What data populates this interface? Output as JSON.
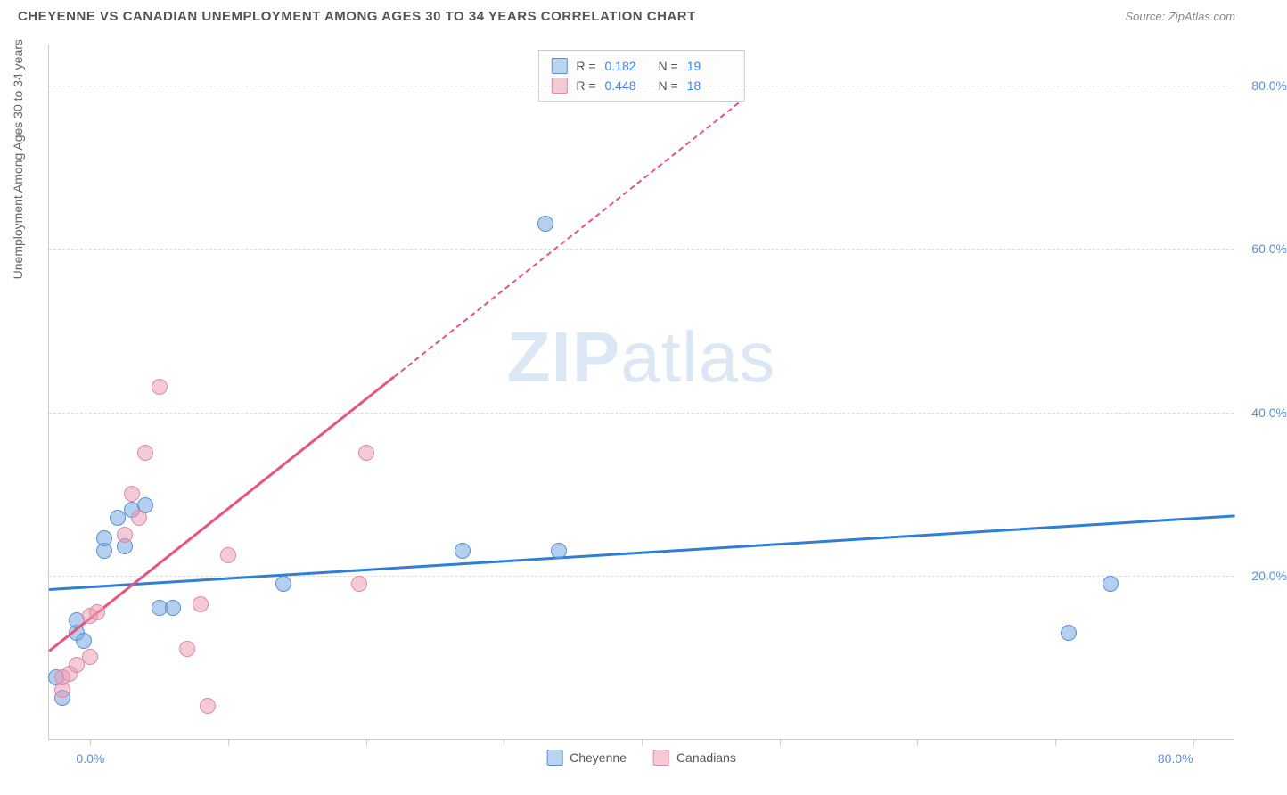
{
  "header": {
    "title": "CHEYENNE VS CANADIAN UNEMPLOYMENT AMONG AGES 30 TO 34 YEARS CORRELATION CHART",
    "source": "Source: ZipAtlas.com"
  },
  "watermark": {
    "bold": "ZIP",
    "light": "atlas"
  },
  "chart": {
    "type": "scatter",
    "y_axis_label": "Unemployment Among Ages 30 to 34 years",
    "background_color": "#ffffff",
    "grid_color": "#dddddd",
    "axis_color": "#cccccc",
    "tick_label_color": "#5b8fd6",
    "xlim": [
      -3,
      83
    ],
    "ylim": [
      0,
      85
    ],
    "x_min_label": "0.0%",
    "x_max_label": "80.0%",
    "y_ticks": [
      {
        "v": 20,
        "label": "20.0%"
      },
      {
        "v": 40,
        "label": "40.0%"
      },
      {
        "v": 60,
        "label": "60.0%"
      },
      {
        "v": 80,
        "label": "80.0%"
      }
    ],
    "x_tick_positions": [
      0,
      10,
      20,
      30,
      40,
      50,
      60,
      70,
      80
    ],
    "legend_top": {
      "rows": [
        {
          "swatch_fill": "#b9d4f0",
          "swatch_border": "#5b8fd6",
          "r_label": "R =",
          "r_val": "0.182",
          "n_label": "N =",
          "n_val": "19"
        },
        {
          "swatch_fill": "#f7c9d4",
          "swatch_border": "#e08aa0",
          "r_label": "R =",
          "r_val": "0.448",
          "n_label": "N =",
          "n_val": "18"
        }
      ]
    },
    "legend_bottom": {
      "items": [
        {
          "swatch_fill": "#b9d4f0",
          "swatch_border": "#5b8fd6",
          "label": "Cheyenne"
        },
        {
          "swatch_fill": "#f7c9d4",
          "swatch_border": "#e08aa0",
          "label": "Canadians"
        }
      ]
    },
    "series": [
      {
        "name": "Cheyenne",
        "fill": "rgba(120,170,225,0.55)",
        "stroke": "#5b8fd6",
        "trend_color": "#2f7ed8",
        "trend": {
          "x1": -3,
          "y1": 18.5,
          "x2": 83,
          "y2": 27.5,
          "dashed_from": null
        },
        "points": [
          {
            "x": -2.5,
            "y": 7.5
          },
          {
            "x": -2,
            "y": 5
          },
          {
            "x": -1,
            "y": 13
          },
          {
            "x": -1,
            "y": 14.5
          },
          {
            "x": -0.5,
            "y": 12
          },
          {
            "x": 1,
            "y": 23
          },
          {
            "x": 1,
            "y": 24.5
          },
          {
            "x": 2,
            "y": 27
          },
          {
            "x": 2.5,
            "y": 23.5
          },
          {
            "x": 3,
            "y": 28
          },
          {
            "x": 4,
            "y": 28.5
          },
          {
            "x": 5,
            "y": 16
          },
          {
            "x": 6,
            "y": 16
          },
          {
            "x": 14,
            "y": 19
          },
          {
            "x": 27,
            "y": 23
          },
          {
            "x": 34,
            "y": 23
          },
          {
            "x": 33,
            "y": 63
          },
          {
            "x": 71,
            "y": 13
          },
          {
            "x": 74,
            "y": 19
          }
        ]
      },
      {
        "name": "Canadians",
        "fill": "rgba(235,150,175,0.5)",
        "stroke": "#e08aa0",
        "trend_color": "#e75480",
        "trend": {
          "x1": -3,
          "y1": 11,
          "x2": 47,
          "y2": 78,
          "dashed_from": 22
        },
        "points": [
          {
            "x": -2,
            "y": 6
          },
          {
            "x": -2,
            "y": 7.5
          },
          {
            "x": -1.5,
            "y": 8
          },
          {
            "x": -1,
            "y": 9
          },
          {
            "x": 0,
            "y": 10
          },
          {
            "x": 0,
            "y": 15
          },
          {
            "x": 0.5,
            "y": 15.5
          },
          {
            "x": 2.5,
            "y": 25
          },
          {
            "x": 3,
            "y": 30
          },
          {
            "x": 3.5,
            "y": 27
          },
          {
            "x": 4,
            "y": 35
          },
          {
            "x": 5,
            "y": 43
          },
          {
            "x": 7,
            "y": 11
          },
          {
            "x": 8,
            "y": 16.5
          },
          {
            "x": 8.5,
            "y": 4
          },
          {
            "x": 10,
            "y": 22.5
          },
          {
            "x": 20,
            "y": 35
          },
          {
            "x": 19.5,
            "y": 19
          }
        ]
      }
    ]
  }
}
